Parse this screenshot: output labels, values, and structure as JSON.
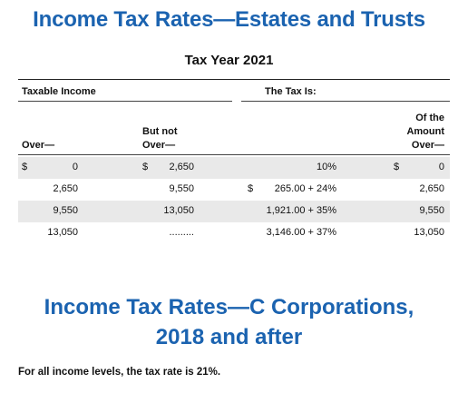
{
  "title": "Income Tax Rates—Estates and Trusts",
  "subtitle": "Tax Year 2021",
  "table": {
    "group_headers": {
      "taxable_income": "Taxable Income",
      "the_tax_is": "The Tax Is:"
    },
    "columns": {
      "over": "Over—",
      "but_not_over_1": "But not",
      "but_not_over_2": "Over—",
      "of_amount_1": "Of the",
      "of_amount_2": "Amount",
      "of_amount_3": "Over—"
    },
    "rows": [
      {
        "over": "0",
        "but_not_over": "2,650",
        "tax": "10%",
        "of_amount": "0"
      },
      {
        "over": "2,650",
        "but_not_over": "9,550",
        "tax": "265.00 + 24%",
        "of_amount": "2,650"
      },
      {
        "over": "9,550",
        "but_not_over": "13,050",
        "tax": "1,921.00 + 35%",
        "of_amount": "9,550"
      },
      {
        "over": "13,050",
        "but_not_over": ".........",
        "tax": "3,146.00 + 37%",
        "of_amount": "13,050"
      }
    ],
    "currency_symbol": "$"
  },
  "section2": {
    "title_line1": "Income Tax Rates—C Corporations,",
    "title_line2": "2018 and after",
    "note": "For all income levels, the tax rate is 21%."
  },
  "colors": {
    "heading_blue": "#1b63b0",
    "row_shade": "#e9e9e9"
  }
}
